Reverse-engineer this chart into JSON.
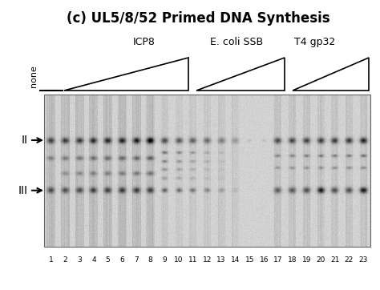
{
  "title": "(c) UL5/8/52 Primed DNA Synthesis",
  "title_fontsize": 12,
  "group_labels": [
    "ICP8",
    "E. coli SSB",
    "T4 gp32"
  ],
  "none_label": "none",
  "lane_labels": [
    "1",
    "2",
    "3",
    "4",
    "5",
    "6",
    "7",
    "8",
    "9",
    "10",
    "11",
    "12",
    "13",
    "14",
    "15",
    "16",
    "17",
    "18",
    "19",
    "20",
    "21",
    "22",
    "23"
  ],
  "lane_count": 23,
  "fig_bg": "#ffffff"
}
